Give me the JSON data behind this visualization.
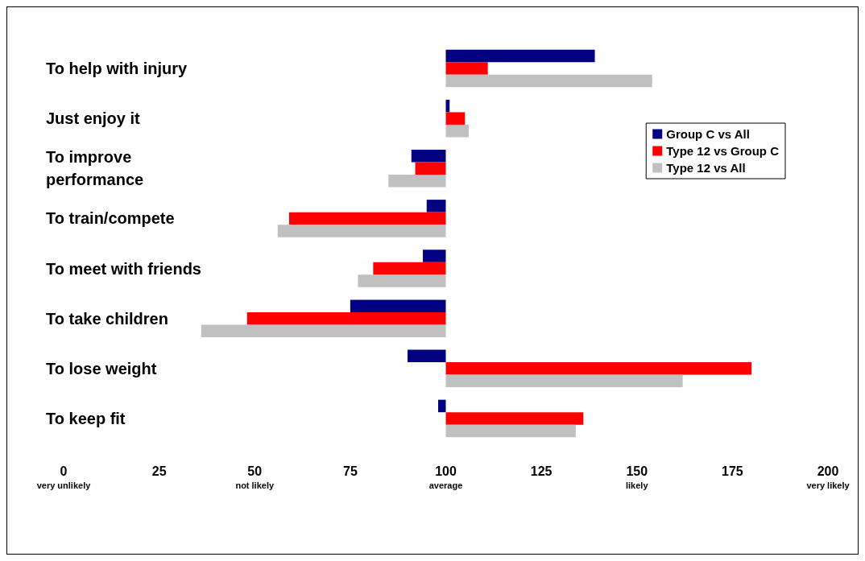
{
  "chart_data": {
    "type": "bar",
    "orientation": "horizontal",
    "categories": [
      "To help with injury",
      "Just enjoy it",
      "To improve performance",
      "To train/compete",
      "To meet with friends",
      "To take children",
      "To lose weight",
      "To keep fit"
    ],
    "series": [
      {
        "name": "Group C vs All",
        "color": "#000080",
        "base": [
          100,
          100,
          100,
          100,
          100,
          100,
          100,
          100
        ],
        "values": [
          39,
          1,
          -9,
          -5,
          -6,
          -25,
          -10,
          -2
        ]
      },
      {
        "name": "Type 12 vs Group C",
        "color": "#ff0000",
        "base": [
          100,
          100,
          100,
          100,
          100,
          100,
          100,
          100
        ],
        "values": [
          11,
          5,
          -8,
          -41,
          -19,
          -52,
          80,
          36
        ]
      },
      {
        "name": "Type 12 vs All",
        "color": "#c0c0c0",
        "base": [
          100,
          100,
          100,
          100,
          100,
          100,
          100,
          100
        ],
        "values": [
          54,
          6,
          -15,
          -44,
          -23,
          -64,
          62,
          34
        ]
      }
    ],
    "xlim": [
      0,
      200
    ],
    "xticks": [
      {
        "value": 0,
        "label": "0\nvery unlikely"
      },
      25,
      {
        "value": 50,
        "label": "50\nnot likely"
      },
      75,
      {
        "value": 100,
        "label": "100\naverage"
      },
      125,
      {
        "value": 150,
        "label": "150\nlikely"
      },
      175,
      {
        "value": 200,
        "label": "200\nvery likely"
      }
    ],
    "grid": false,
    "legend": "top right"
  }
}
